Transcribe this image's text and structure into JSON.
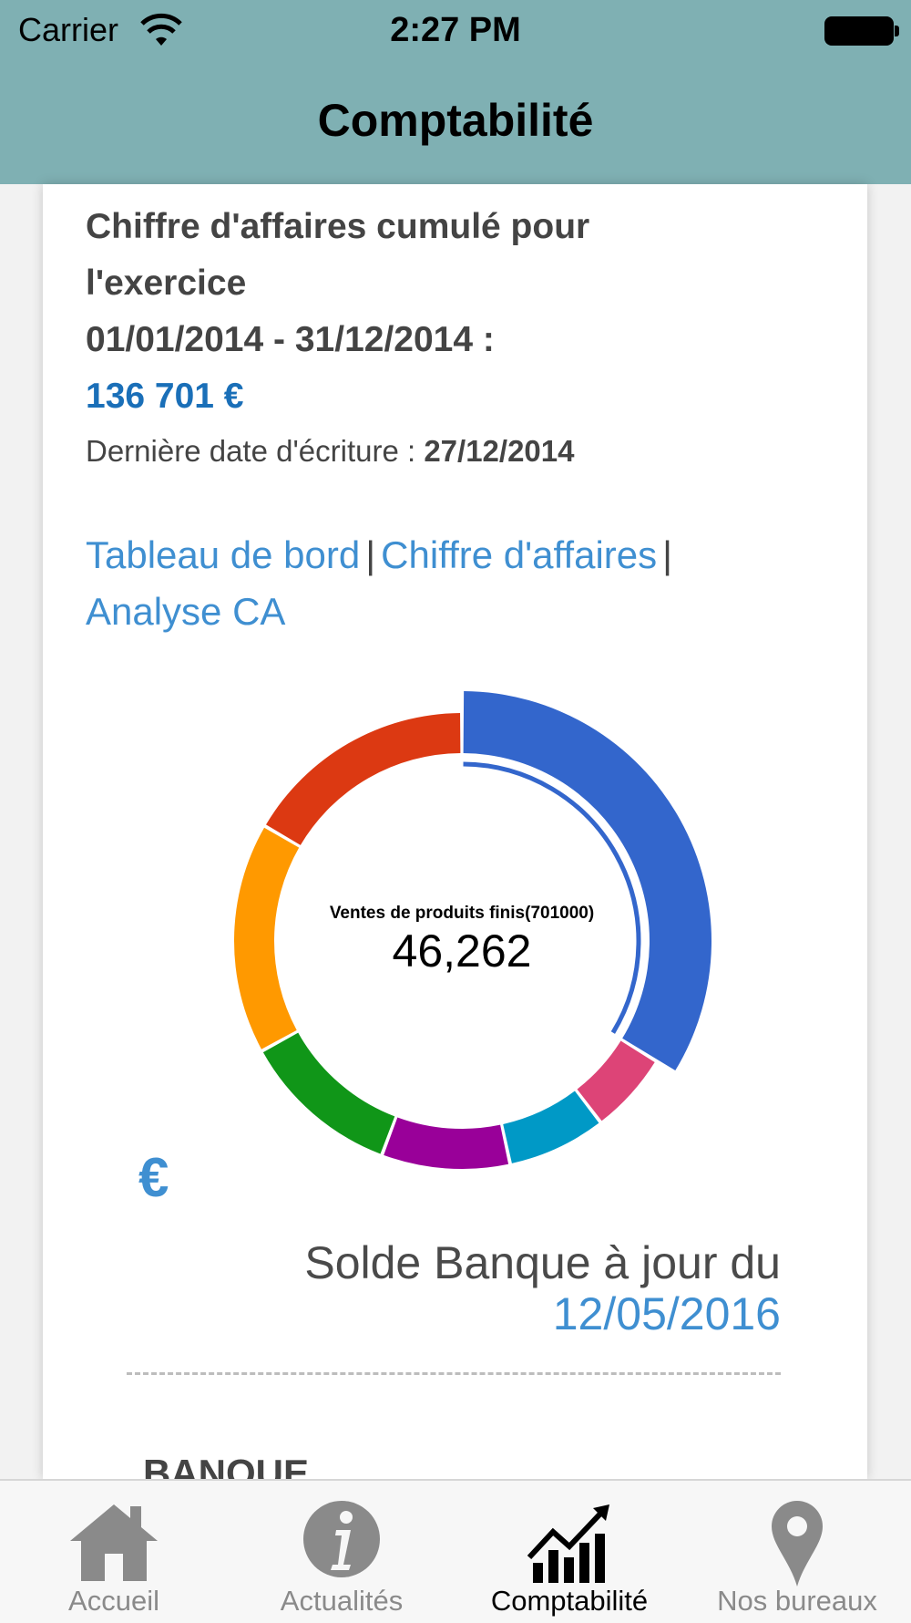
{
  "status_bar": {
    "carrier": "Carrier",
    "time": "2:27 PM"
  },
  "nav": {
    "title": "Comptabilité"
  },
  "summary": {
    "line1": "Chiffre d'affaires cumulé pour",
    "line2": "l'exercice",
    "period": "01/01/2014 - 31/12/2014 :",
    "total": "136 701 €",
    "last_date_label": "Dernière date d'écriture :",
    "last_date_value": "27/12/2014"
  },
  "links": {
    "dashboard": "Tableau de bord",
    "turnover": "Chiffre d'affaires",
    "analysis": "Analyse CA",
    "separator": "|"
  },
  "donut": {
    "center_label": "Ventes de produits finis(701000)",
    "center_value": "46,262",
    "selected_segment": 0,
    "segments": [
      {
        "share": 0.338,
        "color": "#3366cc"
      },
      {
        "share": 0.058,
        "color": "#dd4477"
      },
      {
        "share": 0.07,
        "color": "#0099c6"
      },
      {
        "share": 0.091,
        "color": "#990099"
      },
      {
        "share": 0.113,
        "color": "#109618"
      },
      {
        "share": 0.164,
        "color": "#ff9900"
      },
      {
        "share": 0.166,
        "color": "#dc3912"
      }
    ]
  },
  "currency_icon": "€",
  "bank": {
    "label": "Solde Banque à jour du",
    "date": "12/05/2016",
    "section": "BANQUE"
  },
  "tabs": [
    {
      "label": "Accueil",
      "icon": "home-icon",
      "active": false
    },
    {
      "label": "Actualités",
      "icon": "info-icon",
      "active": false
    },
    {
      "label": "Comptabilité",
      "icon": "chart-icon",
      "active": true
    },
    {
      "label": "Nos bureaux",
      "icon": "location-pin-icon",
      "active": false
    }
  ]
}
